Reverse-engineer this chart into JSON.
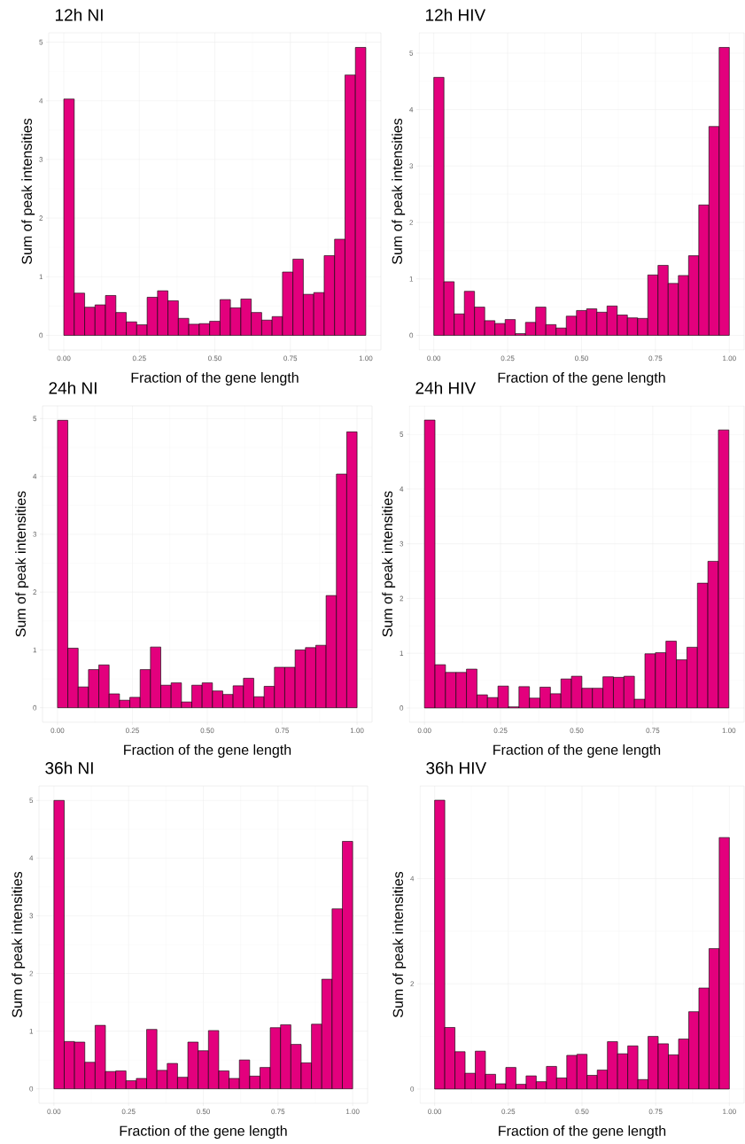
{
  "chart_data": [
    {
      "type": "histogram",
      "title": "12h NI",
      "xlabel": "Fraction of the gene length",
      "ylabel": "Sum of peak intensities",
      "color": "#e3007d",
      "grid": true,
      "bins": [
        0,
        0.0345,
        0.069,
        0.1034,
        0.1379,
        0.1724,
        0.2069,
        0.2414,
        0.2759,
        0.3103,
        0.3448,
        0.3793,
        0.4138,
        0.4483,
        0.4828,
        0.5172,
        0.5517,
        0.5862,
        0.6207,
        0.6552,
        0.6897,
        0.7241,
        0.7586,
        0.7931,
        0.8276,
        0.8621,
        0.8966,
        0.931,
        0.9655,
        1
      ],
      "values": [
        4.03,
        0.72,
        0.48,
        0.52,
        0.68,
        0.39,
        0.23,
        0.18,
        0.65,
        0.76,
        0.59,
        0.29,
        0.19,
        0.2,
        0.24,
        0.61,
        0.47,
        0.62,
        0.39,
        0.26,
        0.32,
        1.08,
        1.3,
        0.7,
        0.73,
        1.36,
        1.64,
        4.44,
        4.91
      ],
      "xlim": [
        -0.05,
        1.05
      ],
      "ylim": [
        -0.25,
        5.16
      ],
      "xticks": [
        {
          "value": 0,
          "label": "0.00"
        },
        {
          "value": 0.25,
          "label": "0.25"
        },
        {
          "value": 0.5,
          "label": "0.50"
        },
        {
          "value": 0.75,
          "label": "0.75"
        },
        {
          "value": 1,
          "label": "1.00"
        }
      ],
      "yticks": [
        0,
        1,
        2,
        3,
        4,
        5
      ]
    },
    {
      "type": "histogram",
      "title": "12h HIV",
      "xlabel": "Fraction of the gene length",
      "ylabel": "Sum of peak intensities",
      "color": "#e3007d",
      "grid": true,
      "bins": [
        0,
        0.0345,
        0.069,
        0.1034,
        0.1379,
        0.1724,
        0.2069,
        0.2414,
        0.2759,
        0.3103,
        0.3448,
        0.3793,
        0.4138,
        0.4483,
        0.4828,
        0.5172,
        0.5517,
        0.5862,
        0.6207,
        0.6552,
        0.6897,
        0.7241,
        0.7586,
        0.7931,
        0.8276,
        0.8621,
        0.8966,
        0.931,
        0.9655,
        1
      ],
      "values": [
        4.57,
        0.95,
        0.38,
        0.78,
        0.5,
        0.26,
        0.21,
        0.28,
        0.03,
        0.23,
        0.5,
        0.19,
        0.13,
        0.34,
        0.44,
        0.47,
        0.41,
        0.52,
        0.36,
        0.31,
        0.3,
        1.07,
        1.24,
        0.92,
        1.06,
        1.41,
        2.31,
        3.7,
        5.1
      ],
      "xlim": [
        -0.05,
        1.05
      ],
      "ylim": [
        -0.26,
        5.36
      ],
      "xticks": [
        {
          "value": 0,
          "label": "0.00"
        },
        {
          "value": 0.25,
          "label": "0.25"
        },
        {
          "value": 0.5,
          "label": "0.50"
        },
        {
          "value": 0.75,
          "label": "0.75"
        },
        {
          "value": 1,
          "label": "1.00"
        }
      ],
      "yticks": [
        0,
        1,
        2,
        3,
        4,
        5
      ]
    },
    {
      "type": "histogram",
      "title": "24h NI",
      "xlabel": "Fraction of the gene length",
      "ylabel": "Sum of peak intensities",
      "color": "#e3007d",
      "grid": true,
      "bins": [
        0,
        0.0345,
        0.069,
        0.1034,
        0.1379,
        0.1724,
        0.2069,
        0.2414,
        0.2759,
        0.3103,
        0.3448,
        0.3793,
        0.4138,
        0.4483,
        0.4828,
        0.5172,
        0.5517,
        0.5862,
        0.6207,
        0.6552,
        0.6897,
        0.7241,
        0.7586,
        0.7931,
        0.8276,
        0.8621,
        0.8966,
        0.931,
        0.9655,
        1
      ],
      "values": [
        4.97,
        1.03,
        0.36,
        0.66,
        0.74,
        0.24,
        0.13,
        0.18,
        0.66,
        1.05,
        0.39,
        0.43,
        0.1,
        0.39,
        0.43,
        0.29,
        0.23,
        0.38,
        0.51,
        0.19,
        0.37,
        0.7,
        0.7,
        1.0,
        1.04,
        1.08,
        1.94,
        4.04,
        4.77
      ],
      "xlim": [
        -0.05,
        1.05
      ],
      "ylim": [
        -0.25,
        5.22
      ],
      "xticks": [
        {
          "value": 0,
          "label": "0.00"
        },
        {
          "value": 0.25,
          "label": "0.25"
        },
        {
          "value": 0.5,
          "label": "0.50"
        },
        {
          "value": 0.75,
          "label": "0.75"
        },
        {
          "value": 1,
          "label": "1.00"
        }
      ],
      "yticks": [
        0,
        1,
        2,
        3,
        4,
        5
      ]
    },
    {
      "type": "histogram",
      "title": "24h HIV",
      "xlabel": "Fraction of the gene length",
      "ylabel": "Sum of peak intensities",
      "color": "#e3007d",
      "grid": true,
      "bins": [
        0,
        0.0345,
        0.069,
        0.1034,
        0.1379,
        0.1724,
        0.2069,
        0.2414,
        0.2759,
        0.3103,
        0.3448,
        0.3793,
        0.4138,
        0.4483,
        0.4828,
        0.5172,
        0.5517,
        0.5862,
        0.6207,
        0.6552,
        0.6897,
        0.7241,
        0.7586,
        0.7931,
        0.8276,
        0.8621,
        0.8966,
        0.931,
        0.9655,
        1
      ],
      "values": [
        5.26,
        0.79,
        0.65,
        0.65,
        0.71,
        0.24,
        0.19,
        0.4,
        0.02,
        0.39,
        0.18,
        0.38,
        0.26,
        0.53,
        0.58,
        0.36,
        0.36,
        0.57,
        0.56,
        0.58,
        0.16,
        0.99,
        1.01,
        1.22,
        0.88,
        1.11,
        2.28,
        2.68,
        5.08
      ],
      "xlim": [
        -0.05,
        1.05
      ],
      "ylim": [
        -0.26,
        5.52
      ],
      "xticks": [
        {
          "value": 0,
          "label": "0.00"
        },
        {
          "value": 0.25,
          "label": "0.25"
        },
        {
          "value": 0.5,
          "label": "0.50"
        },
        {
          "value": 0.75,
          "label": "0.75"
        },
        {
          "value": 1,
          "label": "1.00"
        }
      ],
      "yticks": [
        0,
        1,
        2,
        3,
        4,
        5
      ]
    },
    {
      "type": "histogram",
      "title": "36h NI",
      "xlabel": "Fraction of the gene length",
      "ylabel": "Sum of peak intensities",
      "color": "#e3007d",
      "grid": true,
      "bins": [
        0,
        0.0345,
        0.069,
        0.1034,
        0.1379,
        0.1724,
        0.2069,
        0.2414,
        0.2759,
        0.3103,
        0.3448,
        0.3793,
        0.4138,
        0.4483,
        0.4828,
        0.5172,
        0.5517,
        0.5862,
        0.6207,
        0.6552,
        0.6897,
        0.7241,
        0.7586,
        0.7931,
        0.8276,
        0.8621,
        0.8966,
        0.931,
        0.9655,
        1
      ],
      "values": [
        5.0,
        0.82,
        0.81,
        0.46,
        1.1,
        0.3,
        0.31,
        0.14,
        0.18,
        1.03,
        0.32,
        0.44,
        0.2,
        0.81,
        0.66,
        1.01,
        0.31,
        0.18,
        0.5,
        0.22,
        0.37,
        1.06,
        1.11,
        0.77,
        0.45,
        1.12,
        1.9,
        3.12,
        4.29
      ],
      "xlim": [
        -0.05,
        1.05
      ],
      "ylim": [
        -0.25,
        5.25
      ],
      "xticks": [
        {
          "value": 0,
          "label": "0.00"
        },
        {
          "value": 0.25,
          "label": "0.25"
        },
        {
          "value": 0.5,
          "label": "0.50"
        },
        {
          "value": 0.75,
          "label": "0.75"
        },
        {
          "value": 1,
          "label": "1.00"
        }
      ],
      "yticks": [
        0,
        1,
        2,
        3,
        4,
        5
      ]
    },
    {
      "type": "histogram",
      "title": "36h HIV",
      "xlabel": "Fraction of the gene length",
      "ylabel": "Sum of peak intensities",
      "color": "#e3007d",
      "grid": true,
      "bins": [
        0,
        0.0345,
        0.069,
        0.1034,
        0.1379,
        0.1724,
        0.2069,
        0.2414,
        0.2759,
        0.3103,
        0.3448,
        0.3793,
        0.4138,
        0.4483,
        0.4828,
        0.5172,
        0.5517,
        0.5862,
        0.6207,
        0.6552,
        0.6897,
        0.7241,
        0.7586,
        0.7931,
        0.8276,
        0.8621,
        0.8966,
        0.931,
        0.9655,
        1
      ],
      "values": [
        5.49,
        1.17,
        0.71,
        0.3,
        0.72,
        0.28,
        0.1,
        0.41,
        0.09,
        0.25,
        0.14,
        0.43,
        0.21,
        0.64,
        0.66,
        0.26,
        0.36,
        0.9,
        0.67,
        0.82,
        0.18,
        1.0,
        0.86,
        0.65,
        0.95,
        1.47,
        1.92,
        2.67,
        4.78
      ],
      "xlim": [
        -0.05,
        1.05
      ],
      "ylim": [
        -0.27,
        5.76
      ],
      "xticks": [
        {
          "value": 0,
          "label": "0.00"
        },
        {
          "value": 0.25,
          "label": "0.25"
        },
        {
          "value": 0.5,
          "label": "0.50"
        },
        {
          "value": 0.75,
          "label": "0.75"
        },
        {
          "value": 1,
          "label": "1.00"
        }
      ],
      "yticks": [
        0,
        2,
        4
      ]
    }
  ]
}
